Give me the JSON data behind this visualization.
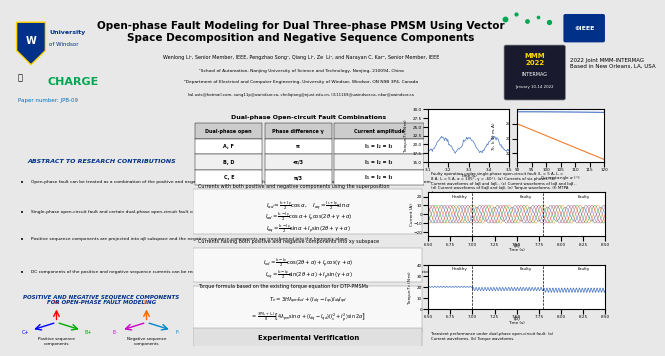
{
  "title": "Open-phase Fault Modeling for Dual Three-phase PMSM Using Vector\nSpace Decomposition and Negative Sequence Components",
  "authors": "Wenlong Li¹, Senior Member, IEEE, Pengzhao Song¹, Qiang Li¹, Ze  Li¹, and Narayan C. Kar², Senior Member, IEEE",
  "affil1": "¹School of Automation, Nanjing University of Science and Technology, Nanjing, 210094, China",
  "affil2": "²Department of Electrical and Computer Engineering, University of Windsor, Windsor, ON N9B 3P4, Canada",
  "emails": "lwl.ustc@hotmail.com, song11p@uwindsor.ca, chnliqiang@njust.edu.cn, ll111169@uwindsor.ca, nkar@uwindsor.ca",
  "paper_number": "Paper number: JPB-09",
  "conference": "2022 Joint MMM-INTERMAG\nBased in New Orleans, LA, USA",
  "bg_color": "#f0f0f0",
  "header_bg": "#ffffff",
  "left_panel_bg": "#ffffff",
  "mid_panel_bg": "#ffffff",
  "right_panel_bg": "#ffffff",
  "accent_blue": "#003087",
  "accent_green": "#00a651",
  "section1_title": "Abstract to Research Contributions",
  "section2_title": "Positive and Negative Sequence Components\nfor Open-phase Fault Modeling",
  "bullet1": "Open-phase fault can be treated as a combination of the positive and negative sequence currents using the positive and negative sequence components for dual three-phase system.",
  "bullet2": "Single-phase open-circuit fault and certain dual-phase open-circuit fault can be represented by artfully constructing the negative sequence components.",
  "bullet3": "Positive sequence components are projected into αβ subspace and the negative sequence components are transformed into the harmonic plane.",
  "bullet4": "DC components of the positive and negative sequence currents can be readily controlled under the open-phase fault with the conventional proportional-integral (PI) current regulators.",
  "table_title": "Dual-phase Open-circuit Fault Combinations",
  "table_headers": [
    "Dual-phase open",
    "Phase difference γ",
    "Current amplitude"
  ],
  "table_rows": [
    [
      "A, F",
      "π",
      "I₁ = I₂ = I₃"
    ],
    [
      "B, D",
      "-π/3",
      "I₁ = I₂ = I₃"
    ],
    [
      "C, E",
      "π/3",
      "I₁ = I₂ = I₃"
    ]
  ],
  "mid_section_text1": "Currents with both positive and negative components using the superposition",
  "mid_section_text2": "Currents having both positive and negative components into xy subspace",
  "torque_section": "Torque formula based on the existing torque equation for DTP-PMSMs",
  "exp_title": "Experimental Verification",
  "caption_right": "Faulty operation under single-phase open-circuit fault (I₁ = 5 A, I₂ =\n8 A, I₃ = 5 A, α = 105°, γ = -60°). (a) Currents of six phases. (b)\nCurrent waveforms of Iαβ and Iαβ₋. (c) Current waveforms of Iαβ and Iαβ₋.\n(d) Current waveforms of Eαβ and Iαβ. (e) Torque waveforms. (f) MTPA\ncharacteristics.",
  "caption_bottom": "Transient performance under dual-phase open-circuit fault. (a)\nCurrent waveforms. (b) Torque waveforms.",
  "colors": {
    "header_title": "#000000",
    "section_heading_bg": "#e8e8e8",
    "table_header_bg": "#cccccc",
    "table_row1_bg": "#ffffff",
    "table_row2_bg": "#f5f5f5",
    "positive_seq_color": "#0000ff",
    "negative_seq_color": "#ff0000",
    "plot_blue": "#4472c4",
    "plot_orange": "#ed7d31",
    "plot_green": "#70ad47"
  }
}
